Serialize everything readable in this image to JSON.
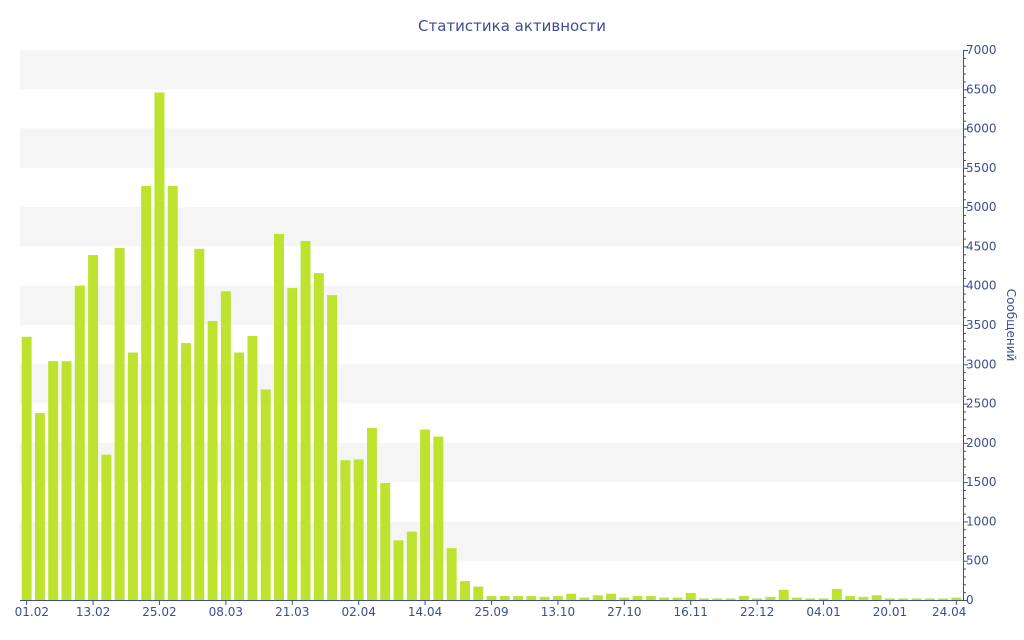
{
  "chart_data": {
    "type": "bar",
    "title": "Статистика активности",
    "xlabel": "",
    "ylabel": "Сообщений",
    "y_axis_position": "right",
    "ylim": [
      0,
      7000
    ],
    "y_ticks": [
      0,
      500,
      1000,
      1500,
      2000,
      2500,
      3000,
      3500,
      4000,
      4500,
      5000,
      5500,
      6000,
      6500,
      7000
    ],
    "x_tick_labels": [
      {
        "index": 0,
        "label": "01.02"
      },
      {
        "index": 5,
        "label": "13.02"
      },
      {
        "index": 10,
        "label": "25.02"
      },
      {
        "index": 15,
        "label": "08.03"
      },
      {
        "index": 20,
        "label": "21.03"
      },
      {
        "index": 25,
        "label": "02.04"
      },
      {
        "index": 30,
        "label": "14.04"
      },
      {
        "index": 35,
        "label": "25.09"
      },
      {
        "index": 40,
        "label": "13.10"
      },
      {
        "index": 45,
        "label": "27.10"
      },
      {
        "index": 50,
        "label": "16.11"
      },
      {
        "index": 55,
        "label": "22.12"
      },
      {
        "index": 60,
        "label": "04.01"
      },
      {
        "index": 65,
        "label": "20.01"
      },
      {
        "index": 70,
        "label": "24.04"
      }
    ],
    "values": [
      3350,
      2380,
      3040,
      3040,
      4000,
      4390,
      1850,
      4480,
      3150,
      5270,
      6460,
      5270,
      3270,
      4470,
      3550,
      3930,
      3150,
      3360,
      2680,
      4660,
      3970,
      4570,
      4160,
      3880,
      1780,
      1790,
      2190,
      1490,
      760,
      870,
      2170,
      2080,
      660,
      240,
      170,
      50,
      50,
      50,
      50,
      40,
      50,
      80,
      30,
      60,
      80,
      30,
      50,
      50,
      30,
      30,
      90,
      20,
      20,
      20,
      50,
      20,
      40,
      130,
      30,
      20,
      20,
      140,
      50,
      40,
      60,
      20,
      20,
      20,
      20,
      20,
      30
    ],
    "bar_color": "#bde32e",
    "grid_band_color": "#f5f5f5",
    "axis_color": "#3d4e8f",
    "grid": true,
    "legend": "none"
  }
}
